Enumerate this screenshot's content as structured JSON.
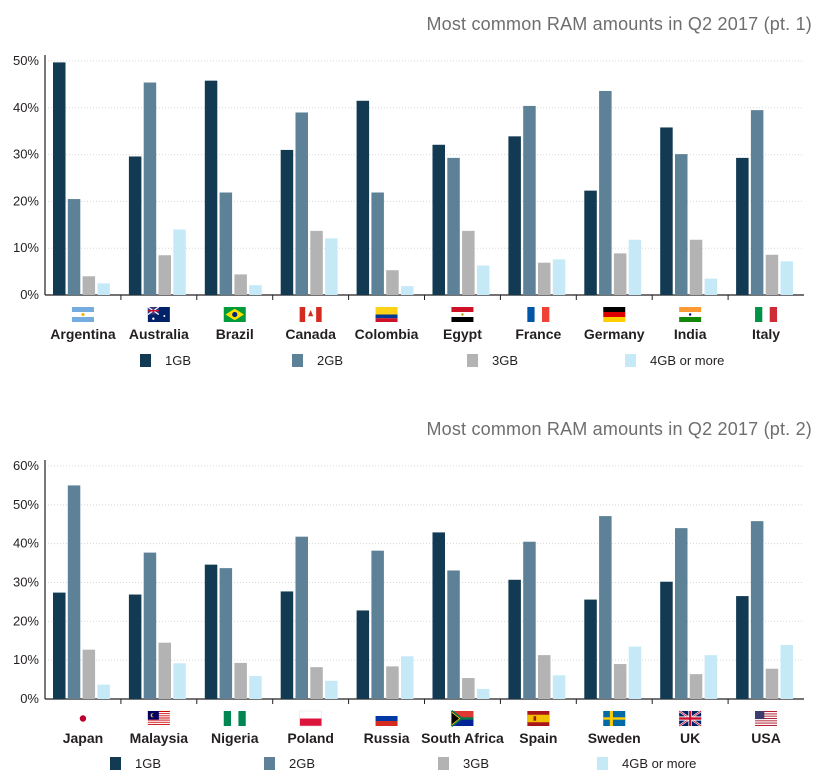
{
  "colors": {
    "1GB": "#123a52",
    "2GB": "#5d8196",
    "3GB": "#b3b3b3",
    "4GB or more": "#c6e9f8",
    "axis": "#231f20",
    "grid": "#d7d7d7"
  },
  "chart_data": [
    {
      "type": "bar",
      "title": "Most common RAM amounts in Q2 2017 (pt. 1)",
      "categories": [
        "Argentina",
        "Australia",
        "Brazil",
        "Canada",
        "Colombia",
        "Egypt",
        "France",
        "Germany",
        "India",
        "Italy"
      ],
      "flags": [
        "argentina",
        "australia",
        "brazil",
        "canada",
        "colombia",
        "egypt",
        "france",
        "germany",
        "india",
        "italy"
      ],
      "series": [
        {
          "name": "1GB",
          "values": [
            49.7,
            29.6,
            45.8,
            31.0,
            41.5,
            32.1,
            33.9,
            22.3,
            35.8,
            29.3
          ]
        },
        {
          "name": "2GB",
          "values": [
            20.5,
            45.4,
            21.9,
            39.0,
            21.9,
            29.3,
            40.4,
            43.6,
            30.1,
            39.5
          ]
        },
        {
          "name": "3GB",
          "values": [
            4.0,
            8.5,
            4.4,
            13.7,
            5.3,
            13.7,
            6.9,
            8.9,
            11.8,
            8.6
          ]
        },
        {
          "name": "4GB or more",
          "values": [
            2.5,
            14.0,
            2.1,
            12.1,
            1.9,
            6.3,
            7.6,
            11.8,
            3.5,
            7.2
          ]
        }
      ],
      "yticks": [
        "0%",
        "10%",
        "20%",
        "30%",
        "40%",
        "50%"
      ],
      "ylim": [
        0,
        50
      ],
      "legend": [
        "1GB",
        "2GB",
        "3GB",
        "4GB or more"
      ]
    },
    {
      "type": "bar",
      "title": "Most common RAM amounts in Q2 2017 (pt. 2)",
      "categories": [
        "Japan",
        "Malaysia",
        "Nigeria",
        "Poland",
        "Russia",
        "South Africa",
        "Spain",
        "Sweden",
        "UK",
        "USA"
      ],
      "flags": [
        "japan",
        "malaysia",
        "nigeria",
        "poland",
        "russia",
        "south-africa",
        "spain",
        "sweden",
        "uk",
        "usa"
      ],
      "series": [
        {
          "name": "1GB",
          "values": [
            27.4,
            26.9,
            34.6,
            27.7,
            22.8,
            42.9,
            30.7,
            25.6,
            30.2,
            26.5
          ]
        },
        {
          "name": "2GB",
          "values": [
            55.0,
            37.7,
            33.7,
            41.8,
            38.2,
            33.1,
            40.5,
            47.1,
            44.0,
            45.8
          ]
        },
        {
          "name": "3GB",
          "values": [
            12.7,
            14.5,
            9.3,
            8.2,
            8.4,
            5.4,
            11.3,
            9.0,
            6.4,
            7.8
          ]
        },
        {
          "name": "4GB or more",
          "values": [
            3.7,
            9.2,
            5.9,
            4.7,
            11.0,
            2.6,
            6.1,
            13.5,
            11.3,
            13.9
          ]
        }
      ],
      "yticks": [
        "0%",
        "10%",
        "20%",
        "30%",
        "40%",
        "50%",
        "60%"
      ],
      "ylim": [
        0,
        60
      ],
      "legend": [
        "1GB",
        "2GB",
        "3GB",
        "4GB or more"
      ]
    }
  ]
}
